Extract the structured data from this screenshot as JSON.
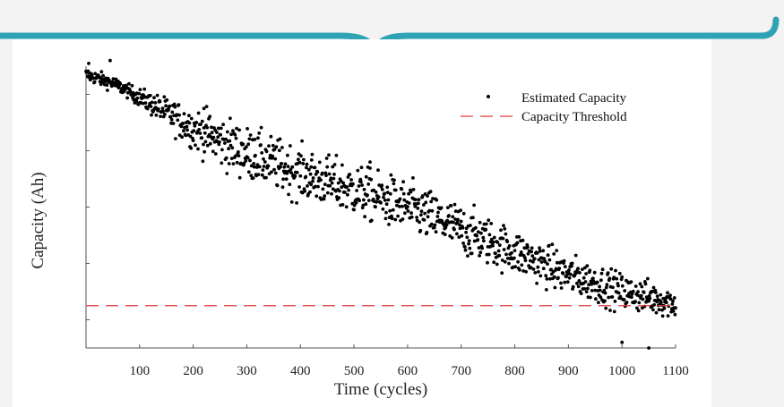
{
  "slide": {
    "accent_color": "#2ea3b4",
    "background_color": "#f3f3f3",
    "panel_color": "#ffffff",
    "decoration": "curly-brace"
  },
  "chart_data": {
    "type": "scatter",
    "xlabel": "Time (cycles)",
    "ylabel": "Capacity (Ah)",
    "xlim": [
      0,
      1100
    ],
    "ylim": [
      0,
      100
    ],
    "xticks": [
      100,
      200,
      300,
      400,
      500,
      600,
      700,
      800,
      900,
      1000,
      1100
    ],
    "yticks_labeled": false,
    "ytick_positions": [
      10,
      30,
      50,
      70,
      90
    ],
    "grid": false,
    "legend_position": "top-right",
    "point_color": "#000000",
    "threshold_color": "#e03a3a",
    "series": [
      {
        "name": "Estimated Capacity",
        "kind": "scatter",
        "trend": {
          "x": [
            0,
            50,
            100,
            200,
            300,
            400,
            500,
            600,
            700,
            800,
            900,
            1000,
            1100
          ],
          "y": [
            97,
            94,
            89,
            78,
            69,
            62,
            56,
            50,
            42,
            34,
            26,
            20,
            16
          ]
        },
        "notable_points": {
          "x": [
            5,
            45,
            220,
            315,
            420,
            530,
            1000,
            1050
          ],
          "y": [
            101,
            102,
            85,
            74,
            58,
            66,
            2,
            0
          ]
        }
      },
      {
        "name": "Capacity Threshold",
        "kind": "line",
        "style": "dashed",
        "y": 15
      }
    ]
  }
}
